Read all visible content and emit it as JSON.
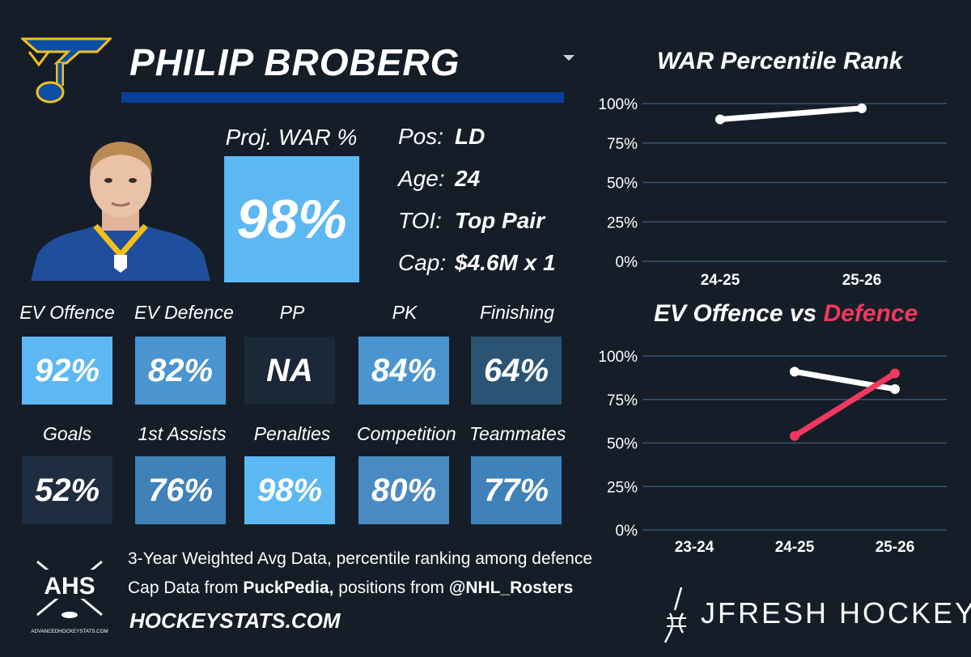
{
  "player": {
    "name": "PHILIP BROBERG",
    "proj_war_label": "Proj. WAR %",
    "proj_war_value": "98%",
    "info": [
      {
        "label": "Pos:",
        "value": "LD"
      },
      {
        "label": "Age:",
        "value": "24"
      },
      {
        "label": "TOI:",
        "value": "Top Pair"
      },
      {
        "label": "Cap:",
        "value": "$4.6M x 1"
      }
    ]
  },
  "metrics": [
    {
      "label": "EV Offence",
      "value": "92%",
      "color": "#5cb8f3"
    },
    {
      "label": "EV Defence",
      "value": "82%",
      "color": "#4a95cf"
    },
    {
      "label": "PP",
      "value": "NA",
      "color": "#1b2838"
    },
    {
      "label": "PK",
      "value": "84%",
      "color": "#4a95cf"
    },
    {
      "label": "Finishing",
      "value": "64%",
      "color": "#2b5474"
    },
    {
      "label": "Goals",
      "value": "52%",
      "color": "#1f2d40"
    },
    {
      "label": "1st Assists",
      "value": "76%",
      "color": "#3f81b9"
    },
    {
      "label": "Penalties",
      "value": "98%",
      "color": "#5cb8f3"
    },
    {
      "label": "Competition",
      "value": "80%",
      "color": "#4a8ac3"
    },
    {
      "label": "Teammates",
      "value": "77%",
      "color": "#3f81b9"
    }
  ],
  "chart_data": [
    {
      "type": "line",
      "title": "WAR Percentile Rank",
      "categories": [
        "24-25",
        "25-26"
      ],
      "series": [
        {
          "values": [
            90,
            97
          ],
          "color": "#ffffff"
        }
      ],
      "ylim": [
        0,
        100
      ],
      "yticks": [
        "0%",
        "25%",
        "50%",
        "75%",
        "100%"
      ],
      "grid": true
    },
    {
      "type": "line",
      "title_parts": [
        "EV Offence vs ",
        "Defence"
      ],
      "categories": [
        "23-24",
        "24-25",
        "25-26"
      ],
      "series": [
        {
          "values": [
            null,
            91,
            81
          ],
          "color": "#ffffff"
        },
        {
          "values": [
            null,
            54,
            90
          ],
          "color": "#f2385e"
        }
      ],
      "ylim": [
        0,
        100
      ],
      "yticks": [
        "0%",
        "25%",
        "50%",
        "75%",
        "100%"
      ],
      "grid": true
    }
  ],
  "footer": {
    "line1": "3-Year Weighted Avg Data, percentile ranking among defence",
    "line2_pre": "Cap Data from ",
    "line2_b1": "PuckPedia,",
    "line2_mid": " positions from ",
    "line2_b2": "@NHL_Rosters",
    "site": "HOCKEYSTATS.COM",
    "ahs_letters": "AHS",
    "ahs_url": "ADVANCEDHOCKEYSTATS.COM",
    "brand": "JFRESH HOCKEY"
  }
}
